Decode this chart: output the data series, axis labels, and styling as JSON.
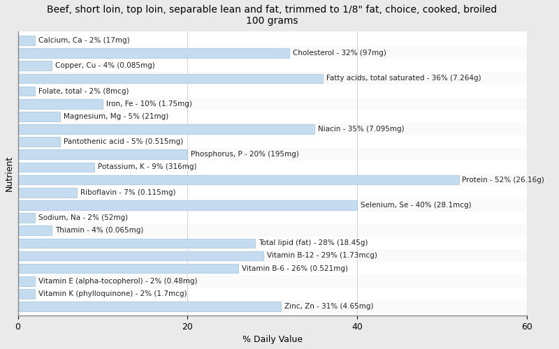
{
  "title": "Beef, short loin, top loin, separable lean and fat, trimmed to 1/8\" fat, choice, cooked, broiled\n100 grams",
  "xlabel": "% Daily Value",
  "ylabel": "Nutrient",
  "xlim": [
    0,
    60
  ],
  "xticks": [
    0,
    20,
    40,
    60
  ],
  "background_color": "#eaeaea",
  "plot_bg_color": "#ffffff",
  "bar_color": "#c5dcf0",
  "bar_edge_color": "#a0c4e0",
  "nutrients": [
    {
      "label": "Calcium, Ca - 2% (17mg)",
      "value": 2
    },
    {
      "label": "Cholesterol - 32% (97mg)",
      "value": 32
    },
    {
      "label": "Copper, Cu - 4% (0.085mg)",
      "value": 4
    },
    {
      "label": "Fatty acids, total saturated - 36% (7.264g)",
      "value": 36
    },
    {
      "label": "Folate, total - 2% (8mcg)",
      "value": 2
    },
    {
      "label": "Iron, Fe - 10% (1.75mg)",
      "value": 10
    },
    {
      "label": "Magnesium, Mg - 5% (21mg)",
      "value": 5
    },
    {
      "label": "Niacin - 35% (7.095mg)",
      "value": 35
    },
    {
      "label": "Pantothenic acid - 5% (0.515mg)",
      "value": 5
    },
    {
      "label": "Phosphorus, P - 20% (195mg)",
      "value": 20
    },
    {
      "label": "Potassium, K - 9% (316mg)",
      "value": 9
    },
    {
      "label": "Protein - 52% (26.16g)",
      "value": 52
    },
    {
      "label": "Riboflavin - 7% (0.115mg)",
      "value": 7
    },
    {
      "label": "Selenium, Se - 40% (28.1mcg)",
      "value": 40
    },
    {
      "label": "Sodium, Na - 2% (52mg)",
      "value": 2
    },
    {
      "label": "Thiamin - 4% (0.065mg)",
      "value": 4
    },
    {
      "label": "Total lipid (fat) - 28% (18.45g)",
      "value": 28
    },
    {
      "label": "Vitamin B-12 - 29% (1.73mcg)",
      "value": 29
    },
    {
      "label": "Vitamin B-6 - 26% (0.521mg)",
      "value": 26
    },
    {
      "label": "Vitamin E (alpha-tocopherol) - 2% (0.48mg)",
      "value": 2
    },
    {
      "label": "Vitamin K (phylloquinone) - 2% (1.7mcg)",
      "value": 2
    },
    {
      "label": "Zinc, Zn - 31% (4.65mg)",
      "value": 31
    }
  ],
  "title_fontsize": 10,
  "axis_label_fontsize": 9,
  "bar_label_fontsize": 7.5,
  "tick_fontsize": 9,
  "bar_height": 0.75
}
